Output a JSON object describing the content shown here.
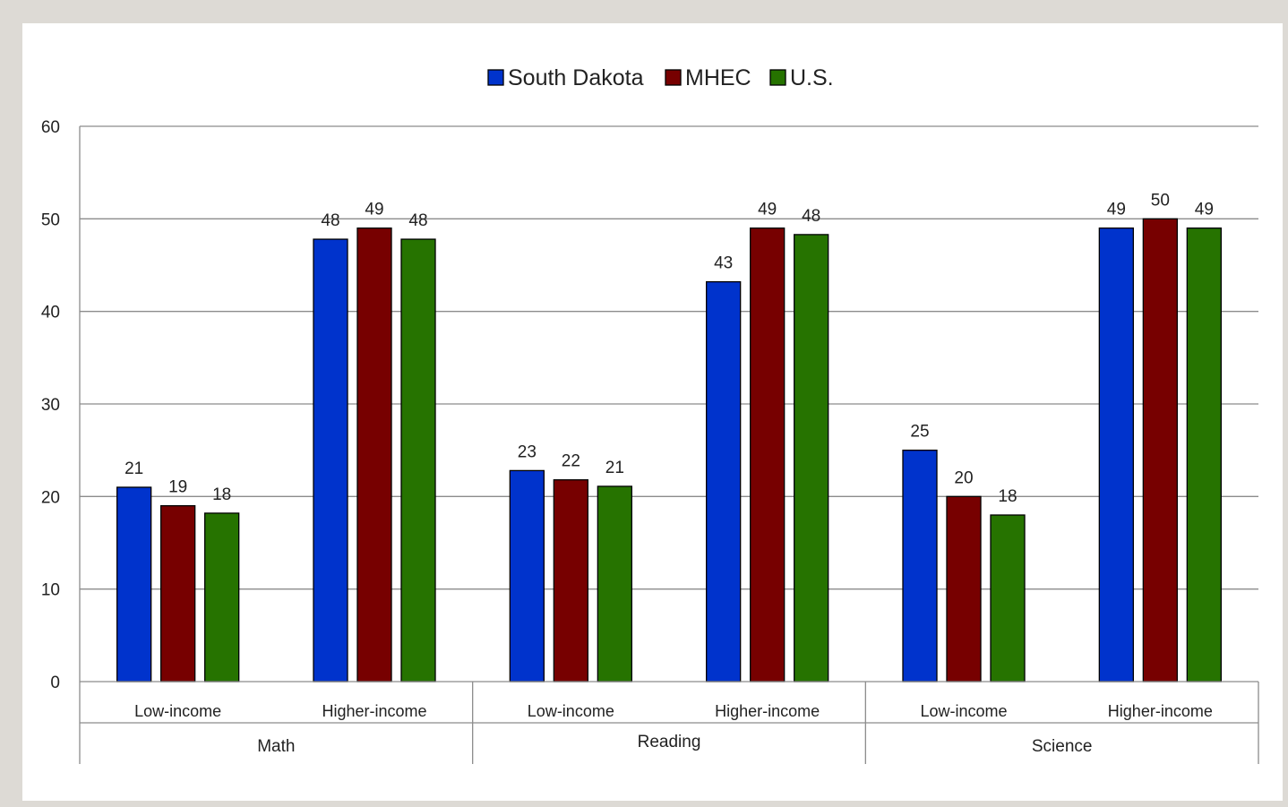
{
  "chart_data": {
    "type": "bar",
    "groups": [
      {
        "name": "Math",
        "categories": [
          "Low-income",
          "Higher-income"
        ]
      },
      {
        "name": "Reading",
        "categories": [
          "Low-income",
          "Higher-income"
        ]
      },
      {
        "name": "Science",
        "categories": [
          "Low-income",
          "Higher-income"
        ]
      }
    ],
    "categories": [
      "Math / Low-income",
      "Math / Higher-income",
      "Reading / Low-income",
      "Reading / Higher-income",
      "Science / Low-income",
      "Science / Higher-income"
    ],
    "series": [
      {
        "name": "South Dakota",
        "color": "#0033cc",
        "values": [
          21,
          47.8,
          22.8,
          43.2,
          25,
          49
        ],
        "labels": [
          "21",
          "48",
          "23",
          "43",
          "25",
          "49"
        ]
      },
      {
        "name": "MHEC",
        "color": "#770000",
        "values": [
          19,
          49,
          21.8,
          49,
          20,
          50
        ],
        "labels": [
          "19",
          "49",
          "22",
          "49",
          "20",
          "50"
        ]
      },
      {
        "name": "U.S.",
        "color": "#267300",
        "values": [
          18.2,
          47.8,
          21.1,
          48.3,
          18,
          49
        ],
        "labels": [
          "18",
          "48",
          "21",
          "48",
          "18",
          "49"
        ]
      }
    ],
    "ylim": [
      0,
      60
    ],
    "yticks": [
      "0",
      "10",
      "20",
      "30",
      "40",
      "50",
      "60"
    ],
    "grid": true,
    "legend_position": "top-center",
    "title": "",
    "xlabel": "",
    "ylabel": ""
  }
}
